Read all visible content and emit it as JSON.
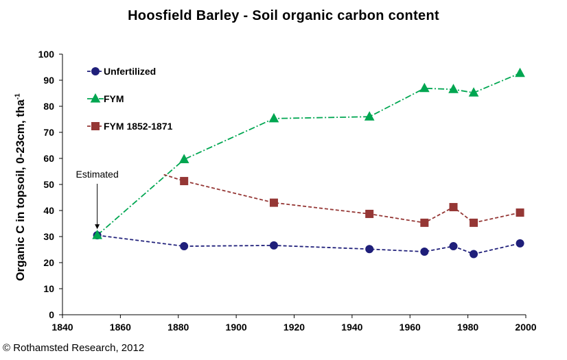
{
  "chart_data": {
    "type": "line",
    "title": "Hoosfield Barley - Soil organic carbon content",
    "ylabel": "Organic C in topsoil, 0-23cm, tha",
    "ylabel_sup": "-1",
    "xlabel": "",
    "xlim": [
      1840,
      2000
    ],
    "ylim": [
      0,
      100
    ],
    "x_ticks": [
      1840,
      1860,
      1880,
      1900,
      1920,
      1940,
      1960,
      1980,
      2000
    ],
    "y_ticks": [
      0,
      10,
      20,
      30,
      40,
      50,
      60,
      70,
      80,
      90,
      100
    ],
    "grid": false,
    "legend_position": "top-left",
    "series": [
      {
        "name": "Unfertilized",
        "color": "#1f1f7a",
        "marker": "circle",
        "line_style": "dashed",
        "x": [
          1852,
          1882,
          1913,
          1946,
          1965,
          1975,
          1982,
          1998
        ],
        "y": [
          30.5,
          26.3,
          26.6,
          25.2,
          24.2,
          26.3,
          23.3,
          27.4
        ]
      },
      {
        "name": "FYM",
        "color": "#00a651",
        "marker": "triangle",
        "line_style": "dash-dot",
        "x": [
          1852,
          1882,
          1913,
          1946,
          1965,
          1975,
          1982,
          1998
        ],
        "y": [
          30.5,
          59.6,
          75.3,
          76.0,
          86.9,
          86.5,
          85.2,
          92.7
        ]
      },
      {
        "name": "FYM 1852-1871",
        "color": "#953735",
        "marker": "square",
        "line_style": "dashed",
        "line_start_x": 1875,
        "line_start_y": 53.8,
        "x": [
          1882,
          1913,
          1946,
          1965,
          1975,
          1982,
          1998
        ],
        "y": [
          51.3,
          43.0,
          38.7,
          35.3,
          41.3,
          35.3,
          39.2
        ]
      }
    ],
    "annotations": [
      {
        "text": "Estimated",
        "x": 1852,
        "y": 30.5
      }
    ]
  },
  "footer": {
    "copyright": "© Rothamsted Research, 2012"
  }
}
